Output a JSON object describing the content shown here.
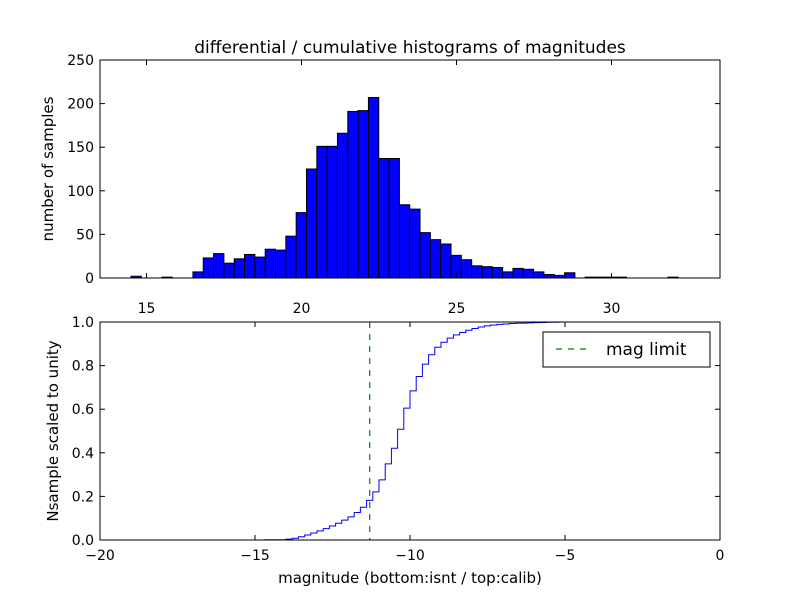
{
  "title": "differential / cumulative histograms of magnitudes",
  "colors": {
    "bar": "#0000ff",
    "step": "#0000ff",
    "limit": "#008000",
    "axes": "#000000"
  },
  "chart_data": [
    {
      "type": "bar",
      "name": "differential-histogram",
      "ylabel": "number of samples",
      "xlim": [
        13.5,
        33.5
      ],
      "ylim": [
        0,
        250
      ],
      "xticks": [
        "15",
        "20",
        "25",
        "30"
      ],
      "xtick_values": [
        15,
        20,
        25,
        30
      ],
      "yticks": [
        "0",
        "50",
        "100",
        "150",
        "200",
        "250"
      ],
      "ytick_values": [
        0,
        50,
        100,
        150,
        200,
        250
      ],
      "bin_start": 14.5,
      "bin_width": 0.333,
      "values": [
        2,
        0,
        0,
        1,
        0,
        0,
        7,
        23,
        28,
        17,
        22,
        27,
        24,
        33,
        32,
        48,
        75,
        125,
        151,
        151,
        166,
        191,
        192,
        207,
        137,
        137,
        84,
        79,
        52,
        44,
        39,
        26,
        21,
        14,
        13,
        12,
        7,
        11,
        10,
        7,
        4,
        3,
        6,
        0,
        1,
        1,
        1,
        1,
        0,
        0,
        0,
        0,
        1,
        0,
        0,
        0,
        0,
        0,
        0,
        0
      ]
    },
    {
      "type": "line",
      "name": "cumulative-histogram",
      "xlabel": "magnitude (bottom:isnt / top:calib)",
      "ylabel": "Nsample scaled to unity",
      "xlim": [
        -20,
        0
      ],
      "ylim": [
        0,
        1
      ],
      "xticks": [
        "−20",
        "−15",
        "−10",
        "−5",
        "0"
      ],
      "xtick_values": [
        -20,
        -15,
        -10,
        -5,
        0
      ],
      "yticks": [
        "0.0",
        "0.2",
        "0.4",
        "0.6",
        "0.8",
        "1.0"
      ],
      "ytick_values": [
        0,
        0.2,
        0.4,
        0.6,
        0.8,
        1.0
      ],
      "x": [
        -20,
        -14.7,
        -14.0,
        -13.8,
        -13.6,
        -13.4,
        -13.2,
        -13.0,
        -12.8,
        -12.6,
        -12.4,
        -12.2,
        -12.0,
        -11.8,
        -11.6,
        -11.4,
        -11.2,
        -11.0,
        -10.8,
        -10.6,
        -10.4,
        -10.2,
        -10.0,
        -9.8,
        -9.6,
        -9.4,
        -9.2,
        -9.0,
        -8.8,
        -8.6,
        -8.4,
        -8.2,
        -8.0,
        -7.8,
        -7.6,
        -7.4,
        -7.2,
        -7.0,
        -6.8,
        -6.6,
        -6.4,
        -6.2,
        -6.0,
        -5.8,
        -5.6,
        -5.4,
        -5.2,
        -5.0,
        0
      ],
      "y": [
        0.0,
        0.001,
        0.004,
        0.008,
        0.015,
        0.023,
        0.032,
        0.042,
        0.052,
        0.064,
        0.077,
        0.091,
        0.106,
        0.126,
        0.15,
        0.182,
        0.221,
        0.276,
        0.349,
        0.421,
        0.508,
        0.605,
        0.684,
        0.75,
        0.807,
        0.85,
        0.884,
        0.907,
        0.926,
        0.941,
        0.952,
        0.962,
        0.97,
        0.977,
        0.982,
        0.986,
        0.989,
        0.991,
        0.993,
        0.994,
        0.995,
        0.996,
        0.997,
        0.998,
        0.999,
        0.999,
        1.0,
        1.0,
        1.0
      ],
      "mag_limit": -11.3,
      "legend": {
        "label": "mag limit",
        "placement": "top-right"
      }
    }
  ]
}
